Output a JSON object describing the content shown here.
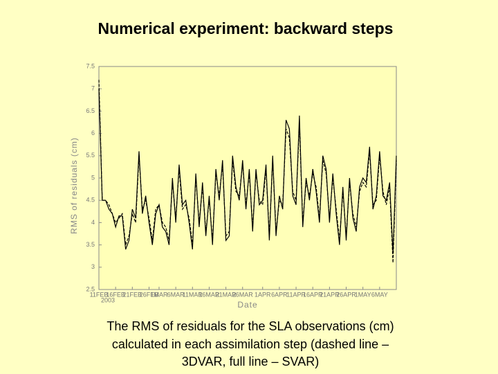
{
  "chart_data": {
    "type": "line",
    "title": "Numerical experiment: backward steps",
    "ylabel": "RMS of residuals (cm)",
    "xlabel": "Date",
    "year": "2003",
    "caption": [
      "The RMS of residuals for the SLA observations (cm)",
      "calculated in each assimilation step (dashed line –",
      "3DVAR, full line – SVAR)"
    ],
    "xlim": [
      0,
      89
    ],
    "xticks": [
      {
        "value": 0,
        "label": "11FEB"
      },
      {
        "value": 5,
        "label": "16FEB"
      },
      {
        "value": 10,
        "label": "21FEB"
      },
      {
        "value": 15,
        "label": "26FEB"
      },
      {
        "value": 18,
        "label": "1MAR"
      },
      {
        "value": 23,
        "label": "6MAR"
      },
      {
        "value": 28,
        "label": "11MAR"
      },
      {
        "value": 33,
        "label": "16MAR"
      },
      {
        "value": 38,
        "label": "21MAR"
      },
      {
        "value": 43,
        "label": "26MAR"
      },
      {
        "value": 49,
        "label": "1APR"
      },
      {
        "value": 54,
        "label": "6APR"
      },
      {
        "value": 59,
        "label": "11APR"
      },
      {
        "value": 64,
        "label": "16APR"
      },
      {
        "value": 69,
        "label": "21APR"
      },
      {
        "value": 74,
        "label": "26APR"
      },
      {
        "value": 79,
        "label": "1MAY"
      },
      {
        "value": 84,
        "label": "6MAY"
      }
    ],
    "ylim": [
      2.5,
      7.5
    ],
    "yticks": [
      2.5,
      3,
      3.5,
      4,
      4.5,
      5,
      5.5,
      6,
      6.5,
      7,
      7.5
    ],
    "series": [
      {
        "name": "SVAR",
        "color": "#000000",
        "dash": false,
        "values": [
          7.0,
          4.5,
          4.5,
          4.3,
          4.2,
          3.9,
          4.15,
          4.15,
          3.4,
          3.6,
          4.3,
          4.1,
          5.6,
          4.2,
          4.6,
          4.0,
          3.5,
          4.2,
          4.4,
          3.9,
          3.8,
          3.5,
          5.0,
          4.0,
          5.3,
          4.4,
          4.5,
          4.0,
          3.4,
          5.1,
          3.9,
          4.9,
          3.7,
          4.6,
          3.5,
          5.2,
          4.5,
          5.4,
          3.6,
          3.7,
          5.5,
          4.8,
          4.5,
          5.4,
          4.3,
          5.2,
          3.8,
          5.2,
          4.4,
          4.5,
          5.3,
          3.6,
          5.5,
          3.7,
          4.6,
          4.3,
          6.3,
          6.1,
          4.6,
          4.4,
          6.4,
          3.9,
          5.0,
          4.5,
          5.2,
          4.7,
          4.0,
          5.5,
          5.2,
          4.0,
          5.1,
          4.2,
          3.5,
          4.8,
          3.6,
          5.0,
          4.1,
          3.8,
          4.8,
          5.0,
          4.9,
          5.7,
          4.3,
          4.6,
          5.6,
          4.6,
          4.5,
          4.9,
          3.3,
          5.5
        ]
      },
      {
        "name": "3DVAR",
        "color": "#000000",
        "dash": true,
        "values": [
          7.2,
          4.5,
          4.5,
          4.4,
          4.2,
          4.0,
          4.1,
          4.2,
          3.5,
          3.7,
          4.2,
          4.0,
          5.5,
          4.3,
          4.5,
          4.1,
          3.6,
          4.3,
          4.4,
          4.0,
          3.9,
          3.6,
          4.9,
          4.1,
          5.2,
          4.3,
          4.4,
          4.1,
          3.5,
          5.0,
          4.0,
          4.8,
          3.8,
          4.5,
          3.6,
          5.1,
          4.6,
          5.3,
          3.7,
          3.8,
          5.4,
          4.7,
          4.6,
          5.3,
          4.4,
          5.1,
          3.9,
          5.1,
          4.5,
          4.4,
          5.2,
          3.7,
          5.4,
          3.8,
          4.5,
          4.4,
          6.1,
          5.9,
          4.7,
          4.5,
          6.2,
          4.0,
          4.9,
          4.6,
          5.1,
          4.8,
          4.1,
          5.4,
          5.1,
          4.1,
          5.0,
          4.3,
          3.6,
          4.7,
          3.7,
          4.9,
          4.2,
          3.9,
          4.7,
          4.9,
          4.8,
          5.6,
          4.4,
          4.5,
          5.5,
          4.7,
          4.4,
          4.8,
          3.1,
          5.4
        ]
      }
    ]
  }
}
